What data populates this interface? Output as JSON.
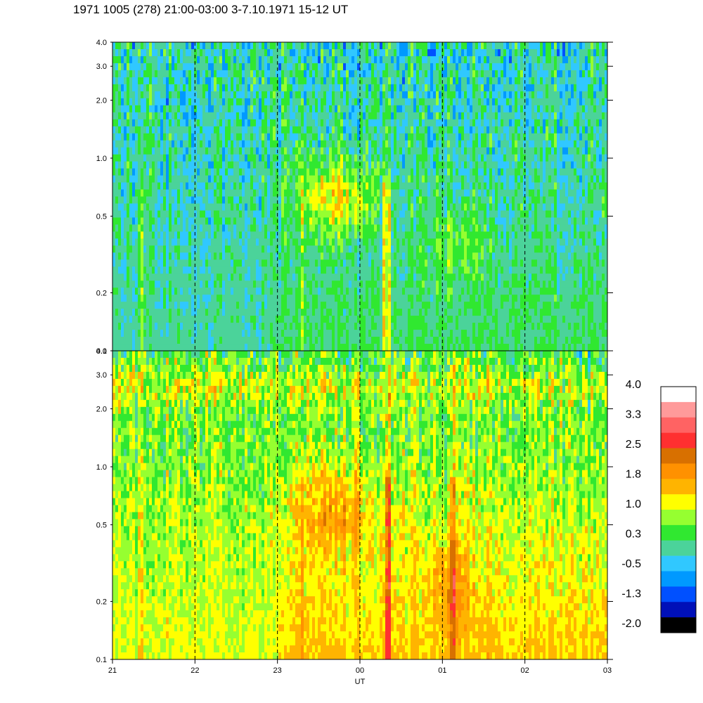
{
  "title": "1971 1005 (278) 21:00-03:00 3-7.10.1971  15-12 UT",
  "chart_data": [
    {
      "type": "heatmap",
      "panel": "top",
      "y_scale": "log",
      "ylim": [
        0.1,
        4.0
      ],
      "ytick_labels": [
        "0.1",
        "0.2",
        "0.5",
        "1.0",
        "2.0",
        "3.0",
        "4.0"
      ],
      "ytick_values": [
        0.1,
        0.2,
        0.5,
        1.0,
        2.0,
        3.0,
        4.0
      ],
      "x_range": [
        "21",
        "03"
      ],
      "dominant_levels": "green to blue (-0.5 to 0.7), yellow-orange features near 23:10-00:00 (0.3-1.0) and an orange streak near 00:20"
    },
    {
      "type": "heatmap",
      "panel": "bottom",
      "y_scale": "log",
      "ylim": [
        0.1,
        4.0
      ],
      "ytick_labels": [
        "0.1",
        "0.2",
        "0.5",
        "1.0",
        "2.0",
        "3.0",
        "4.0"
      ],
      "ytick_values": [
        0.1,
        0.2,
        0.5,
        1.0,
        2.0,
        3.0,
        4.0
      ],
      "xlabel": "UT",
      "xtick_labels": [
        "21",
        "22",
        "23",
        "00",
        "01",
        "02",
        "03"
      ],
      "xtick_hours": [
        0,
        1,
        2,
        3,
        4,
        5,
        6
      ],
      "dominant_levels": "yellow-orange (1.0 to 2.2) after 23:00, yellow-green before, red streaks near 00:20 and 01:10"
    }
  ],
  "colorbar": {
    "labels": [
      "4.0",
      "3.3",
      "2.5",
      "1.8",
      "1.0",
      "0.3",
      "-0.5",
      "-1.3",
      "-2.0"
    ],
    "colors": [
      "#ffffff",
      "#ff9a9a",
      "#ff6363",
      "#ff3030",
      "#d87000",
      "#ff9100",
      "#ffb400",
      "#ffff00",
      "#96ff30",
      "#30e830",
      "#4bd39a",
      "#30c8ff",
      "#0099ff",
      "#0050ff",
      "#0010b8",
      "#000000"
    ]
  }
}
